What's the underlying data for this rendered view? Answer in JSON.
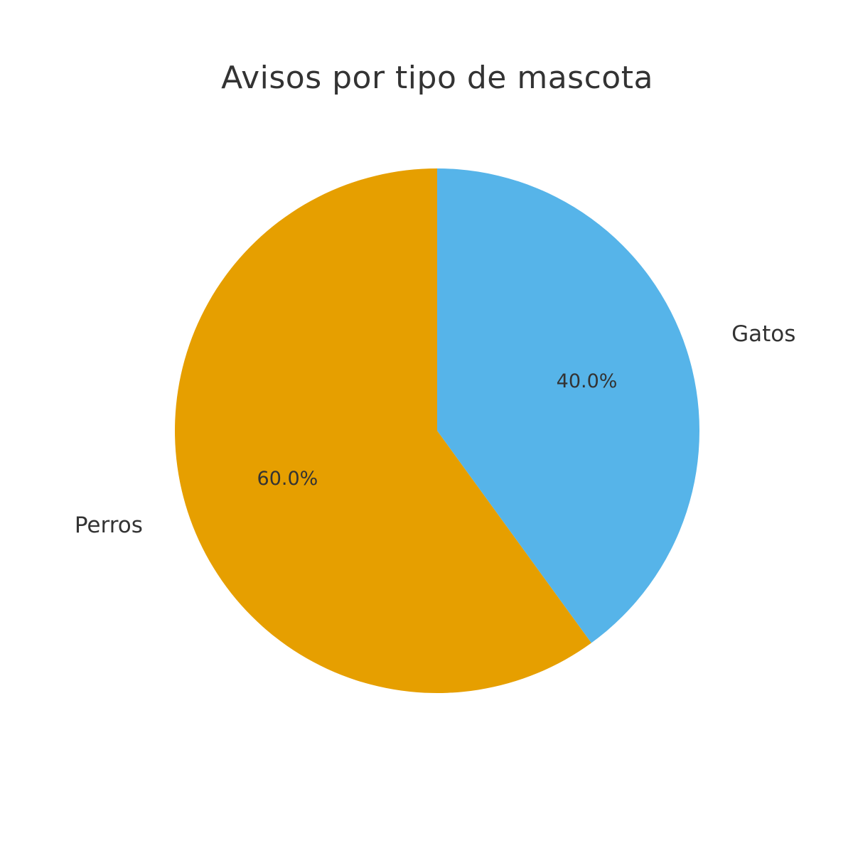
{
  "chart_data": {
    "type": "pie",
    "title": "Avisos por tipo de mascota",
    "categories": [
      "Gatos",
      "Perros"
    ],
    "values": [
      40.0,
      60.0
    ],
    "percent_labels": [
      "40.0%",
      "60.0%"
    ],
    "colors": [
      "#56B4E9",
      "#E69F00"
    ],
    "start": "top",
    "direction": "clockwise",
    "legend": "none"
  }
}
